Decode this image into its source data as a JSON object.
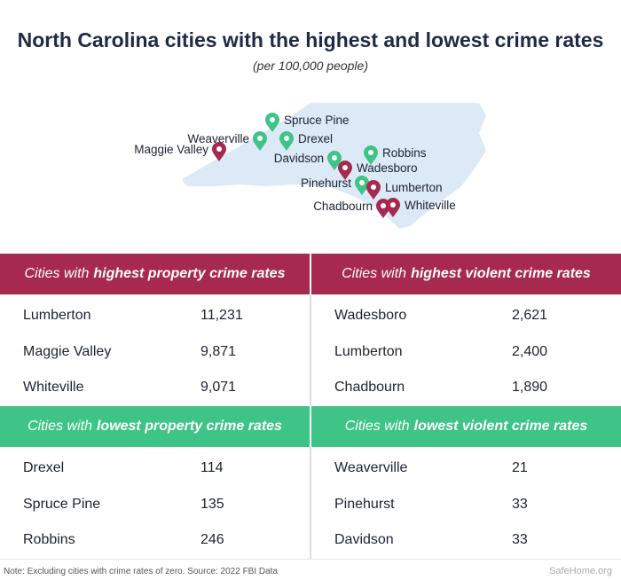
{
  "title": "North Carolina cities with the highest and lowest crime rates",
  "subtitle": "(per 100,000 people)",
  "colors": {
    "high": "#a6294f",
    "low": "#3ec486",
    "map": "#dce9f6"
  },
  "map_pins": [
    {
      "city": "Spruce Pine",
      "type": "low"
    },
    {
      "city": "Weaverville",
      "type": "low"
    },
    {
      "city": "Drexel",
      "type": "low"
    },
    {
      "city": "Maggie Valley",
      "type": "high"
    },
    {
      "city": "Davidson",
      "type": "low"
    },
    {
      "city": "Robbins",
      "type": "low"
    },
    {
      "city": "Wadesboro",
      "type": "high"
    },
    {
      "city": "Pinehurst",
      "type": "low"
    },
    {
      "city": "Lumberton",
      "type": "high"
    },
    {
      "city": "Chadbourn",
      "type": "high"
    },
    {
      "city": "Whiteville",
      "type": "high"
    }
  ],
  "chart_data": {
    "type": "table",
    "title": "North Carolina cities with the highest and lowest crime rates",
    "tables": [
      {
        "prefix": "Cities with",
        "emph": "highest property crime rates",
        "rows": [
          {
            "city": "Lumberton",
            "value": "11,231"
          },
          {
            "city": "Maggie Valley",
            "value": "9,871"
          },
          {
            "city": "Whiteville",
            "value": "9,071"
          }
        ]
      },
      {
        "prefix": "Cities with",
        "emph": "highest violent crime rates",
        "rows": [
          {
            "city": "Wadesboro",
            "value": "2,621"
          },
          {
            "city": "Lumberton",
            "value": "2,400"
          },
          {
            "city": "Chadbourn",
            "value": "1,890"
          }
        ]
      },
      {
        "prefix": "Cities with",
        "emph": "lowest property crime rates",
        "rows": [
          {
            "city": "Drexel",
            "value": "114"
          },
          {
            "city": "Spruce Pine",
            "value": "135"
          },
          {
            "city": "Robbins",
            "value": "246"
          }
        ]
      },
      {
        "prefix": "Cities with",
        "emph": "lowest violent crime rates",
        "rows": [
          {
            "city": "Weaverville",
            "value": "21"
          },
          {
            "city": "Pinehurst",
            "value": "33"
          },
          {
            "city": "Davidson",
            "value": "33"
          }
        ]
      }
    ]
  },
  "footer": {
    "note": "Note: Excluding cities with crime rates of zero. Source: 2022 FBI Data",
    "logo": "SafeHome.org"
  }
}
